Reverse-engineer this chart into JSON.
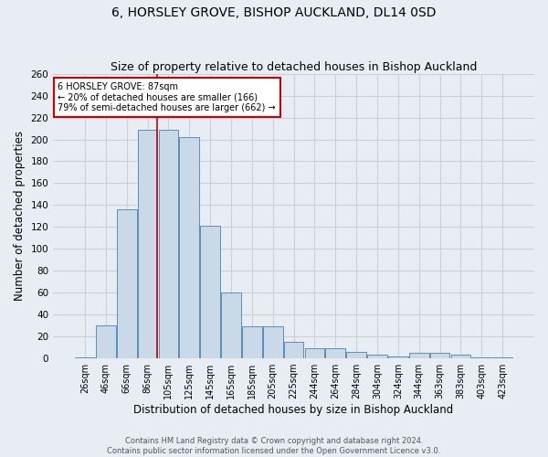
{
  "title": "6, HORSLEY GROVE, BISHOP AUCKLAND, DL14 0SD",
  "subtitle": "Size of property relative to detached houses in Bishop Auckland",
  "xlabel": "Distribution of detached houses by size in Bishop Auckland",
  "ylabel": "Number of detached properties",
  "categories": [
    "26sqm",
    "46sqm",
    "66sqm",
    "86sqm",
    "105sqm",
    "125sqm",
    "145sqm",
    "165sqm",
    "185sqm",
    "205sqm",
    "225sqm",
    "244sqm",
    "264sqm",
    "284sqm",
    "304sqm",
    "324sqm",
    "344sqm",
    "363sqm",
    "383sqm",
    "403sqm",
    "423sqm"
  ],
  "values": [
    1,
    30,
    136,
    209,
    209,
    202,
    121,
    60,
    29,
    29,
    15,
    9,
    9,
    6,
    3,
    2,
    5,
    5,
    3,
    1,
    1
  ],
  "bar_color": "#c9d9e8",
  "bar_edge_color": "#5b8db8",
  "grid_color": "#c8d0dc",
  "background_color": "#e8edf4",
  "red_line_index": 3,
  "annotation_text": "6 HORSLEY GROVE: 87sqm\n← 20% of detached houses are smaller (166)\n79% of semi-detached houses are larger (662) →",
  "annotation_box_color": "#ffffff",
  "annotation_box_edge": "#cc0000",
  "ylim": [
    0,
    260
  ],
  "yticks": [
    0,
    20,
    40,
    60,
    80,
    100,
    120,
    140,
    160,
    180,
    200,
    220,
    240,
    260
  ],
  "footer_line1": "Contains HM Land Registry data © Crown copyright and database right 2024.",
  "footer_line2": "Contains public sector information licensed under the Open Government Licence v3.0.",
  "title_fontsize": 10,
  "subtitle_fontsize": 9,
  "xlabel_fontsize": 8.5,
  "ylabel_fontsize": 8.5,
  "tick_fontsize": 7,
  "ytick_fontsize": 7.5,
  "footer_fontsize": 6,
  "annotation_fontsize": 7
}
